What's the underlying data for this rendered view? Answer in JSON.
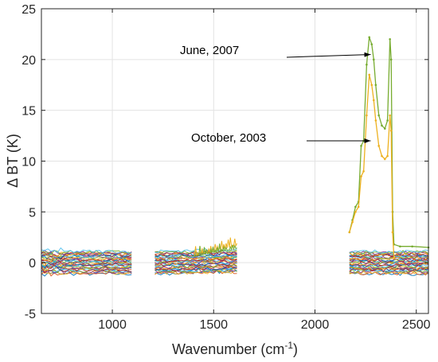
{
  "chart_data": {
    "type": "line",
    "title": "",
    "xlabel": "Wavenumber (cm",
    "xlabel_sup": "-1",
    "xlabel_end": ")",
    "ylabel": "Δ BT (K)",
    "xlim": [
      650,
      2560
    ],
    "ylim": [
      -5,
      25
    ],
    "x_ticks": [
      1000,
      1500,
      2000,
      2500
    ],
    "x_tick_labels": [
      "1000",
      "1500",
      "2000",
      "2500"
    ],
    "y_ticks": [
      -5,
      0,
      5,
      10,
      15,
      20,
      25
    ],
    "y_tick_labels": [
      "-5",
      "0",
      "5",
      "10",
      "15",
      "20",
      "25"
    ],
    "grid": true,
    "colors": [
      "#0072BD",
      "#D95319",
      "#EDB120",
      "#7E2F8E",
      "#77AC30",
      "#4DBEEE",
      "#A2142F"
    ],
    "background_band_segments": [
      [
        650,
        1095
      ],
      [
        1210,
        1615
      ],
      [
        2170,
        2560
      ]
    ],
    "series": [
      {
        "color": "#77AC30",
        "x": [
          2170,
          2185,
          2200,
          2215,
          2228,
          2240,
          2255,
          2268,
          2280,
          2290,
          2300,
          2315,
          2330,
          2345,
          2358,
          2370,
          2376,
          2383,
          2390,
          2420,
          2480,
          2560
        ],
        "y": [
          3.0,
          4.2,
          5.5,
          6.0,
          11.5,
          12.0,
          19.5,
          22.2,
          21.5,
          20.0,
          17.5,
          14.5,
          13.5,
          13.2,
          14.0,
          22.0,
          20.0,
          5.0,
          1.8,
          1.6,
          1.6,
          1.5
        ]
      },
      {
        "color": "#EDB120",
        "x": [
          2170,
          2185,
          2200,
          2215,
          2228,
          2240,
          2255,
          2268,
          2280,
          2290,
          2300,
          2315,
          2330,
          2345,
          2358,
          2370,
          2376,
          2383,
          2390
        ],
        "y": [
          3.0,
          4.0,
          5.0,
          5.5,
          8.5,
          9.0,
          14.5,
          18.5,
          17.5,
          16.0,
          14.0,
          11.5,
          10.5,
          10.2,
          10.5,
          14.5,
          13.0,
          3.0,
          0.5
        ]
      }
    ],
    "annotations": [
      {
        "text": "June, 2007",
        "arrow_to": [
          2275,
          20.5
        ]
      },
      {
        "text": "October, 2003",
        "arrow_to": [
          2275,
          12.0
        ]
      }
    ]
  }
}
